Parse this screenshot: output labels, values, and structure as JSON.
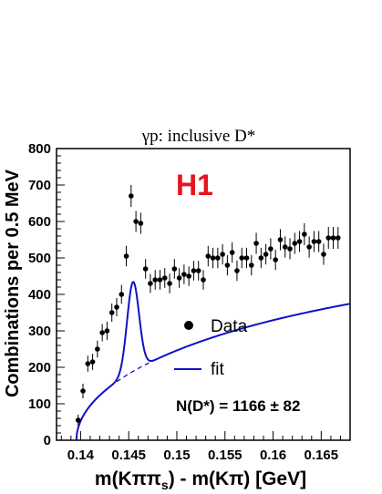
{
  "chart_data": {
    "type": "scatter",
    "title": "γp: inclusive D*",
    "brand": "H1",
    "brand_color": "#e8141b",
    "fit_color": "#1010c8",
    "xlabel": {
      "main": "m(Kππ",
      "sub": "s",
      "rest": ") - m(Kπ) [GeV]"
    },
    "ylabel": "Combinations per 0.5 MeV",
    "xlim": [
      0.1375,
      0.168
    ],
    "ylim": [
      0,
      800
    ],
    "xticks": [
      0.14,
      0.145,
      0.15,
      0.155,
      0.16,
      0.165
    ],
    "xtick_labels": [
      "0.14",
      "0.145",
      "0.15",
      "0.155",
      "0.16",
      "0.165"
    ],
    "yticks": [
      0,
      100,
      200,
      300,
      400,
      500,
      600,
      700,
      800
    ],
    "ytick_labels": [
      "0",
      "100",
      "200",
      "300",
      "400",
      "500",
      "600",
      "700",
      "800"
    ],
    "legend": {
      "data_label": "Data",
      "fit_label": "fit"
    },
    "annotation": "N(D*) = 1166 ± 82",
    "series": [
      {
        "name": "Data",
        "x": [
          0.13975,
          0.14025,
          0.14075,
          0.14125,
          0.14175,
          0.14225,
          0.14275,
          0.14325,
          0.14375,
          0.14425,
          0.14475,
          0.14525,
          0.14575,
          0.14625,
          0.14675,
          0.14725,
          0.14775,
          0.14825,
          0.14875,
          0.14925,
          0.14975,
          0.15025,
          0.15075,
          0.15125,
          0.15175,
          0.15225,
          0.15275,
          0.15325,
          0.15375,
          0.15425,
          0.15475,
          0.15525,
          0.15575,
          0.15625,
          0.15675,
          0.15725,
          0.15775,
          0.15825,
          0.15875,
          0.15925,
          0.15975,
          0.16025,
          0.16075,
          0.16125,
          0.16175,
          0.16225,
          0.16275,
          0.16325,
          0.16375,
          0.16425,
          0.16475,
          0.16525,
          0.16575,
          0.16625,
          0.16675
        ],
        "y": [
          55,
          135,
          210,
          215,
          250,
          295,
          300,
          350,
          365,
          400,
          505,
          670,
          600,
          595,
          470,
          430,
          440,
          440,
          445,
          430,
          470,
          445,
          455,
          450,
          465,
          465,
          440,
          505,
          500,
          500,
          510,
          480,
          515,
          465,
          500,
          500,
          480,
          540,
          500,
          510,
          525,
          495,
          550,
          530,
          525,
          540,
          545,
          565,
          530,
          545,
          545,
          510,
          555,
          555,
          555
        ],
        "yerr": [
          15,
          20,
          22,
          22,
          23,
          24,
          25,
          25,
          25,
          26,
          28,
          30,
          29,
          29,
          27,
          26,
          27,
          27,
          27,
          27,
          27,
          27,
          27,
          27,
          27,
          27,
          27,
          28,
          28,
          28,
          28,
          28,
          28,
          28,
          28,
          28,
          28,
          29,
          28,
          28,
          29,
          28,
          29,
          29,
          29,
          29,
          29,
          30,
          29,
          29,
          29,
          29,
          30,
          30,
          30
        ]
      }
    ],
    "fit": {
      "name": "fit",
      "background": {
        "x0": 0.13957,
        "A": 2530,
        "p": 0.5,
        "B": 4.6,
        "style": "dashed"
      },
      "signal": {
        "mean": 0.14545,
        "sigma": 0.00062,
        "amplitude": 245
      }
    }
  }
}
